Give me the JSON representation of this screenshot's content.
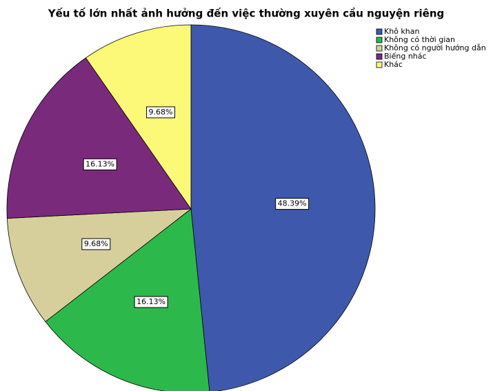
{
  "chart_data": {
    "type": "pie",
    "title": "Yếu tố lớn nhất ảnh hưởng đến việc thường xuyên cầu nguyện riêng",
    "categories": [
      "Khô khan",
      "Không có thời gian",
      "Không có người hướng dẫn",
      "Biếng nhác",
      "Khác"
    ],
    "values": [
      48.39,
      16.13,
      9.68,
      16.13,
      9.68
    ],
    "value_labels": [
      "48.39%",
      "16.13%",
      "9.68%",
      "16.13%",
      "9.68%"
    ],
    "colors": [
      "#3e58ac",
      "#2db84c",
      "#d6cf9c",
      "#7a2a7b",
      "#fbf977"
    ],
    "legend": "upper right"
  }
}
